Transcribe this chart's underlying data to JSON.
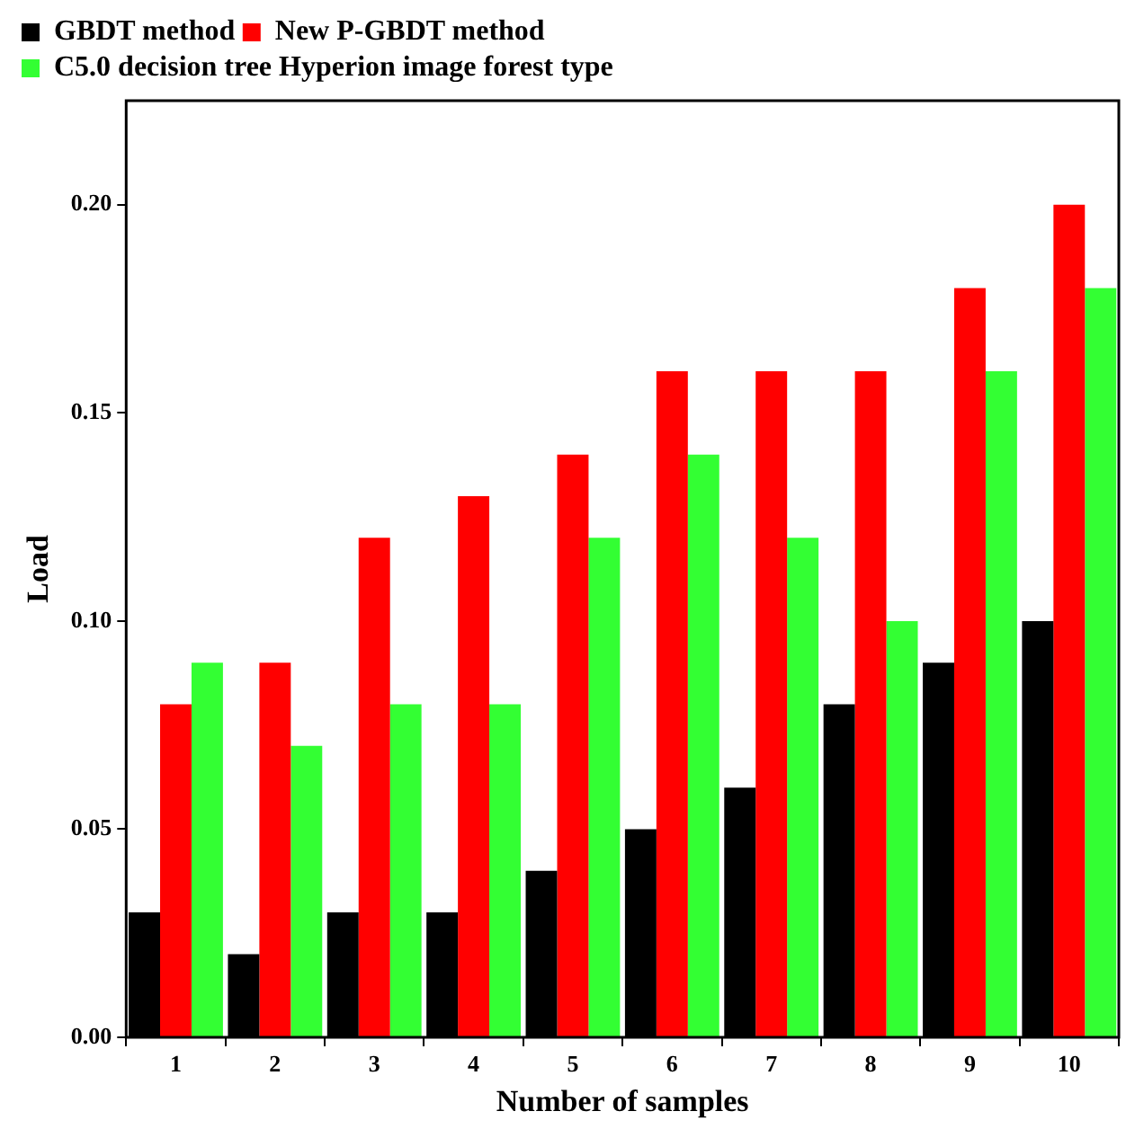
{
  "chart_data": {
    "type": "bar",
    "xlabel": "Number of samples",
    "ylabel": "Load",
    "categories": [
      "1",
      "2",
      "3",
      "4",
      "5",
      "6",
      "7",
      "8",
      "9",
      "10"
    ],
    "series": [
      {
        "name": "GBDT method",
        "color": "#000000",
        "values": [
          0.03,
          0.02,
          0.03,
          0.03,
          0.04,
          0.05,
          0.06,
          0.08,
          0.09,
          0.1
        ]
      },
      {
        "name": "New P-GBDT method",
        "color": "#ff0000",
        "values": [
          0.08,
          0.09,
          0.12,
          0.13,
          0.14,
          0.16,
          0.16,
          0.16,
          0.18,
          0.2
        ]
      },
      {
        "name": "C5.0 decision tree Hyperion image forest type",
        "color": "#33ff33",
        "values": [
          0.09,
          0.07,
          0.08,
          0.08,
          0.12,
          0.14,
          0.12,
          0.1,
          0.16,
          0.18
        ]
      }
    ],
    "ylim": [
      0,
      0.225
    ],
    "yticks": [
      {
        "value": 0,
        "label": "0.00"
      },
      {
        "value": 0.05,
        "label": "0.05"
      },
      {
        "value": 0.1,
        "label": "0.10"
      },
      {
        "value": 0.15,
        "label": "0.15"
      },
      {
        "value": 0.2,
        "label": "0.20"
      }
    ],
    "grid": false,
    "legend": "top left"
  }
}
